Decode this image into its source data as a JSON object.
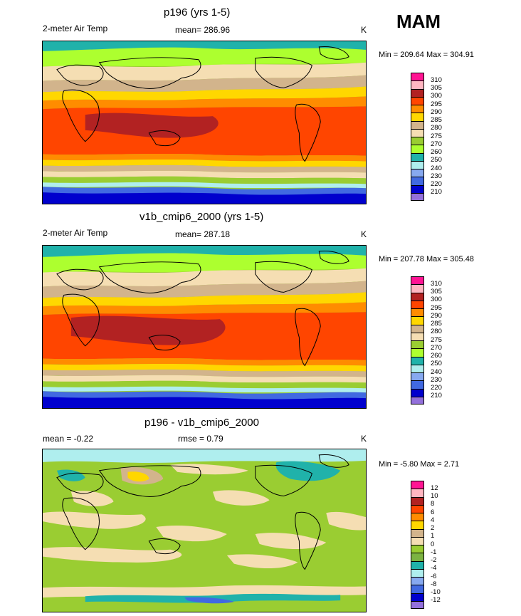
{
  "season": "MAM",
  "panels": [
    {
      "title": "p196 (yrs 1-5)",
      "left_label": "2-meter Air Temp",
      "mean_label": "mean= 286.96",
      "units": "K",
      "minmax": "Min = 209.64 Max = 304.91",
      "kind": "abs"
    },
    {
      "title": "v1b_cmip6_2000 (yrs 1-5)",
      "left_label": "2-meter Air Temp",
      "mean_label": "mean= 287.18",
      "units": "K",
      "minmax": "Min = 207.78 Max = 305.48",
      "kind": "abs"
    },
    {
      "title": "p196 - v1b_cmip6_2000",
      "left_label": "mean =  -0.22",
      "mean_label": "rmse =   0.79",
      "units": "K",
      "minmax": "Min =  -5.80 Max =   2.71",
      "kind": "diff"
    }
  ],
  "colorbars": {
    "abs": {
      "labels": [
        "310",
        "305",
        "300",
        "295",
        "290",
        "285",
        "280",
        "275",
        "270",
        "260",
        "250",
        "240",
        "230",
        "220",
        "210"
      ],
      "colors": [
        "#ff1493",
        "#ffb6c1",
        "#b22222",
        "#ff4500",
        "#ff8c00",
        "#ffd700",
        "#d2b48c",
        "#f5deb3",
        "#9acd32",
        "#adff2f",
        "#20b2aa",
        "#afeeee",
        "#87a9f0",
        "#4169e1",
        "#0000cd",
        "#9370db"
      ]
    },
    "diff": {
      "labels": [
        "12",
        "10",
        "8",
        "6",
        "4",
        "2",
        "1",
        "0",
        "-1",
        "-2",
        "-4",
        "-6",
        "-8",
        "-10",
        "-12"
      ],
      "colors": [
        "#ff1493",
        "#ffb6c1",
        "#b22222",
        "#ff4500",
        "#ff8c00",
        "#ffd700",
        "#d2b48c",
        "#f5deb3",
        "#9acd32",
        "#7cb342",
        "#20b2aa",
        "#afeeee",
        "#87a9f0",
        "#4169e1",
        "#0000cd",
        "#9370db"
      ]
    }
  }
}
